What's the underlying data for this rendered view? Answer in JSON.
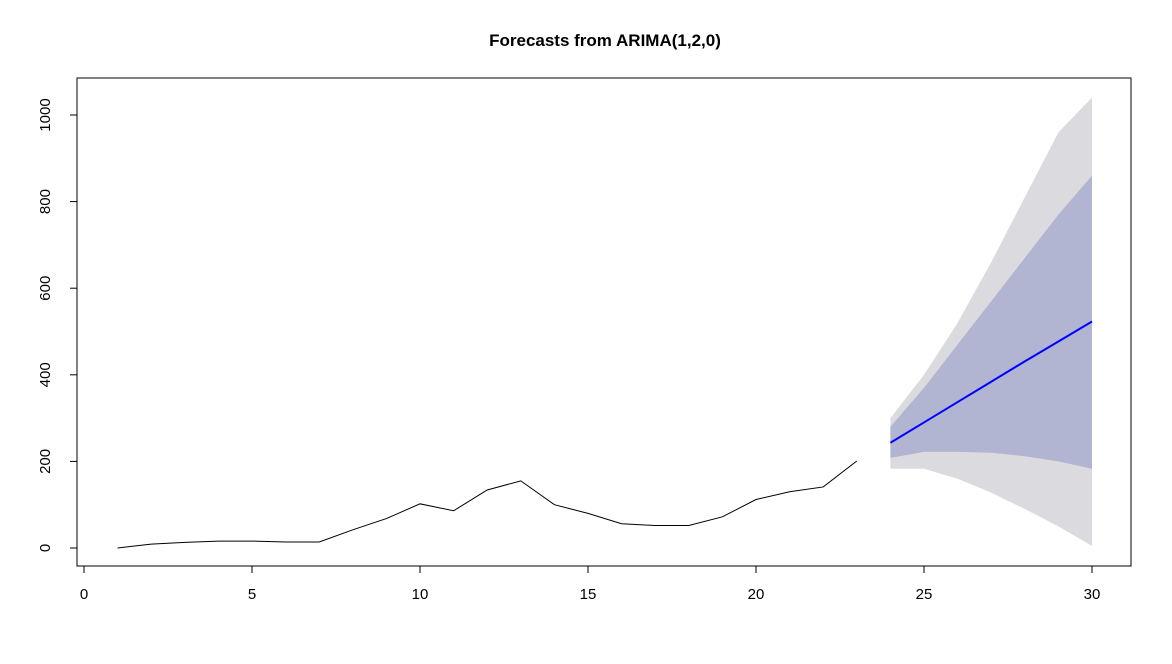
{
  "chart_data": {
    "type": "line",
    "title": "Forecasts from ARIMA(1,2,0)",
    "xlabel": "",
    "ylabel": "",
    "xlim": [
      0,
      30
    ],
    "ylim": [
      0,
      1000
    ],
    "x_ticks": [
      0,
      5,
      10,
      15,
      20,
      25,
      30
    ],
    "y_ticks": [
      0,
      200,
      400,
      600,
      800,
      1000
    ],
    "grid": false,
    "legend": "none",
    "series": [
      {
        "role": "observed",
        "color": "#000000",
        "points": [
          [
            1,
            0
          ],
          [
            2,
            9
          ],
          [
            3,
            13
          ],
          [
            4,
            16
          ],
          [
            5,
            16
          ],
          [
            6,
            14
          ],
          [
            7,
            14
          ],
          [
            8,
            42
          ],
          [
            9,
            68
          ],
          [
            10,
            102
          ],
          [
            11,
            86
          ],
          [
            12,
            134
          ],
          [
            13,
            155
          ],
          [
            14,
            100
          ],
          [
            15,
            80
          ],
          [
            16,
            56
          ],
          [
            17,
            52
          ],
          [
            18,
            52
          ],
          [
            19,
            72
          ],
          [
            20,
            112
          ],
          [
            21,
            130
          ],
          [
            22,
            141
          ],
          [
            23,
            201
          ]
        ]
      },
      {
        "role": "forecast",
        "color": "#0000ff",
        "points": [
          [
            24,
            243
          ],
          [
            25,
            290
          ],
          [
            26,
            337
          ],
          [
            27,
            384
          ],
          [
            28,
            431
          ],
          [
            29,
            477
          ],
          [
            30,
            523
          ]
        ]
      }
    ],
    "bands": [
      {
        "role": "outer_interval",
        "color": "#dbdbdf",
        "x": [
          24,
          25,
          26,
          27,
          28,
          29,
          30
        ],
        "lower": [
          183,
          183,
          160,
          128,
          90,
          50,
          5
        ],
        "upper": [
          300,
          400,
          520,
          660,
          810,
          960,
          1040
        ]
      },
      {
        "role": "inner_interval",
        "color": "#b1b5d1",
        "x": [
          24,
          25,
          26,
          27,
          28,
          29,
          30
        ],
        "lower": [
          208,
          222,
          222,
          220,
          212,
          200,
          183
        ],
        "upper": [
          280,
          370,
          470,
          570,
          670,
          770,
          860
        ]
      }
    ]
  }
}
